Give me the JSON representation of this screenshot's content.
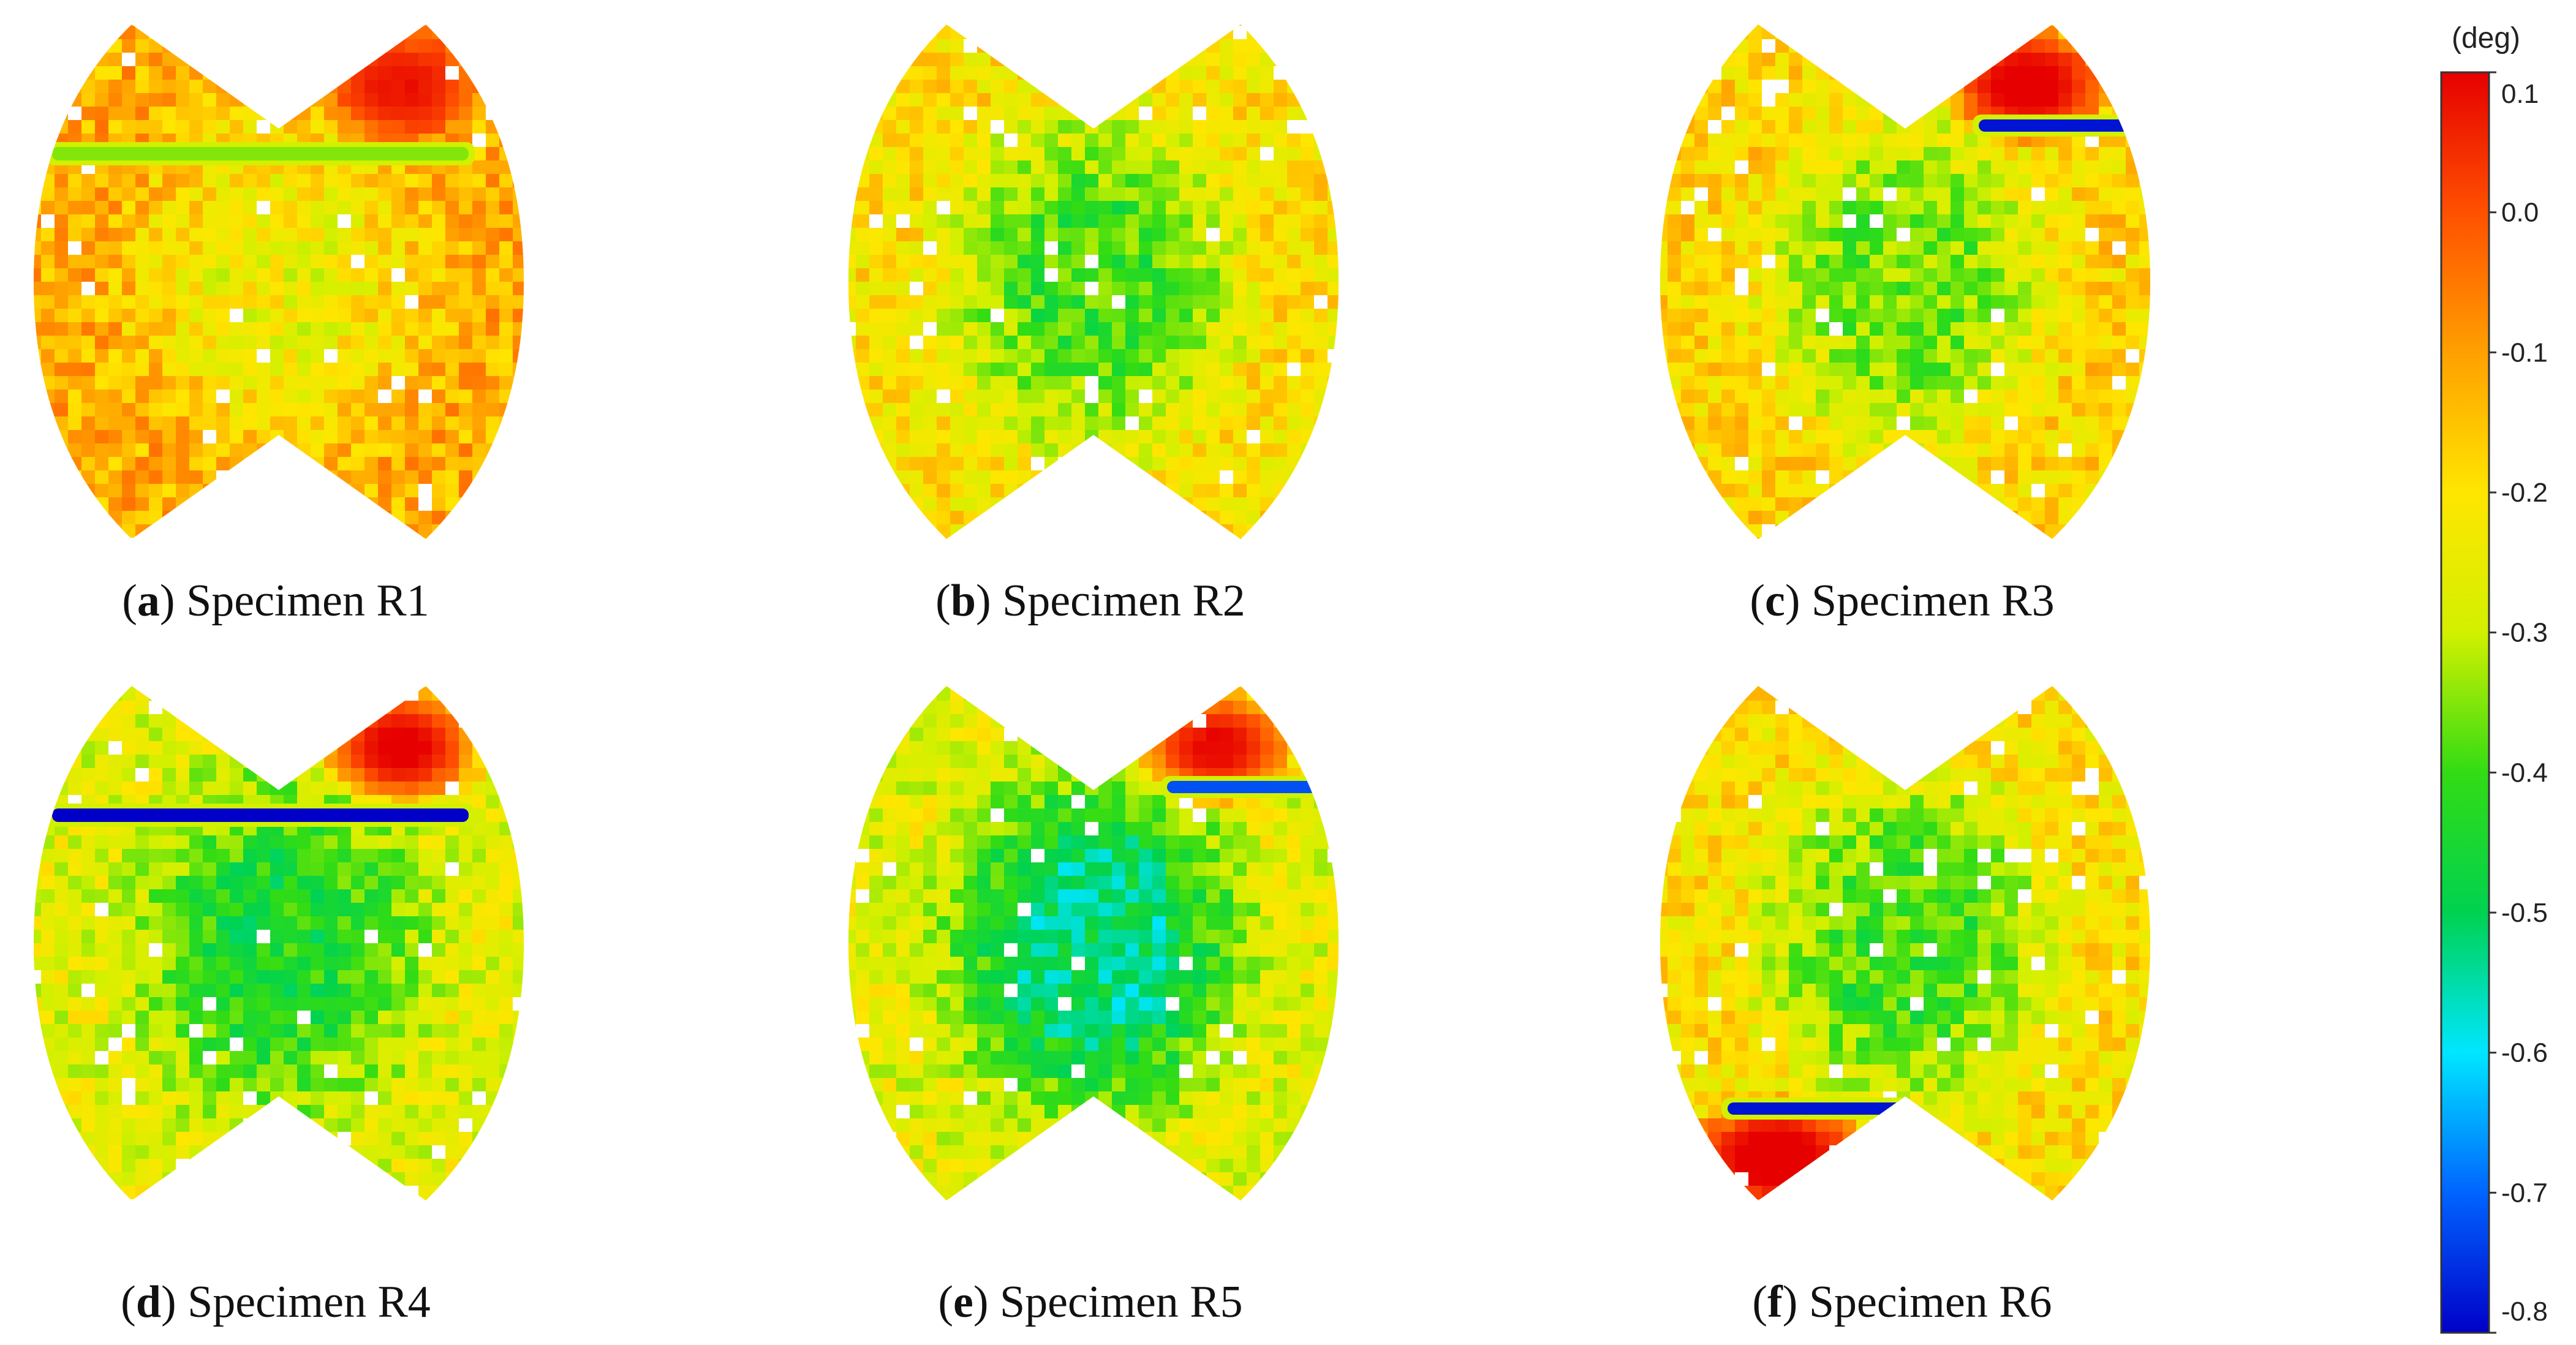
{
  "chart_data": {
    "type": "heatmap",
    "colorbar": {
      "unit": "(deg)",
      "min": -0.8,
      "max": 0.1,
      "ticks": [
        0.1,
        0.0,
        -0.1,
        -0.2,
        -0.3,
        -0.4,
        -0.5,
        -0.6,
        -0.7,
        -0.8
      ],
      "tick_labels": [
        "0.1",
        "0.0",
        "-0.1",
        "-0.2",
        "-0.3",
        "-0.4",
        "-0.5",
        "-0.6",
        "-0.7",
        "-0.8"
      ],
      "colormap": [
        "#0000c8",
        "#0064ff",
        "#00e6ff",
        "#00d250",
        "#32dc14",
        "#d2f000",
        "#ffe600",
        "#ffa000",
        "#ff5000",
        "#e60000"
      ]
    },
    "panels": [
      {
        "letter": "a",
        "label": " Specimen R1",
        "base_value": -0.12,
        "center_value": -0.24,
        "hot_spot": "upper-right",
        "hot_value": 0.05,
        "band": "upper",
        "band_value": -0.35
      },
      {
        "letter": "b",
        "label": " Specimen R2",
        "base_value": -0.2,
        "center_value": -0.4,
        "hot_spot": "none",
        "hot_value": -0.1,
        "band": "none",
        "band_value": -0.4
      },
      {
        "letter": "c",
        "label": " Specimen R3",
        "base_value": -0.18,
        "center_value": -0.36,
        "hot_spot": "upper-right",
        "hot_value": 0.08,
        "band": "upper-right",
        "band_value": -0.78
      },
      {
        "letter": "d",
        "label": " Specimen R4",
        "base_value": -0.26,
        "center_value": -0.44,
        "hot_spot": "upper-right",
        "hot_value": 0.06,
        "band": "upper",
        "band_value": -0.8
      },
      {
        "letter": "e",
        "label": " Specimen R5",
        "base_value": -0.26,
        "center_value": -0.52,
        "hot_spot": "upper-right",
        "hot_value": 0.04,
        "band": "upper-right",
        "band_value": -0.72
      },
      {
        "letter": "f",
        "label": " Specimen R6",
        "base_value": -0.2,
        "center_value": -0.4,
        "hot_spot": "lower-left",
        "hot_value": 0.09,
        "band": "lower-left",
        "band_value": -0.78
      }
    ]
  }
}
